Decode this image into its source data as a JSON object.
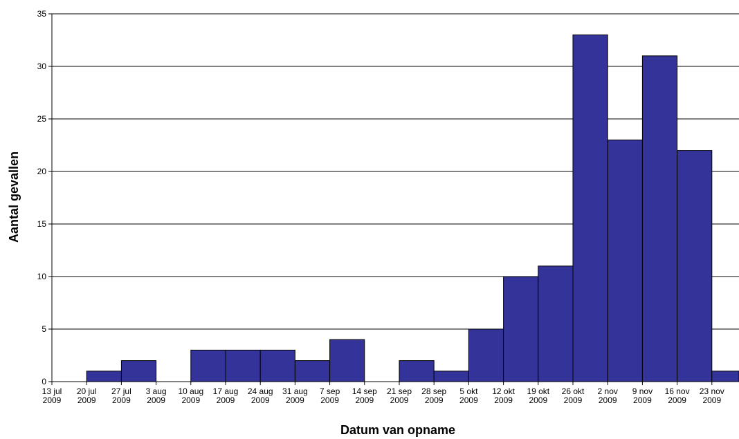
{
  "chart_data": {
    "type": "bar",
    "title": "",
    "xlabel": "Datum van opname",
    "ylabel": "Aantal gevallen",
    "ylim": [
      0,
      35
    ],
    "yticks": [
      0,
      5,
      10,
      15,
      20,
      25,
      30,
      35
    ],
    "grid": true,
    "legend": "none",
    "bar_color": "#333399",
    "bar_edge_color": "#000000",
    "xticks": [
      {
        "date": "13 jul",
        "year": "2009"
      },
      {
        "date": "20 jul",
        "year": "2009"
      },
      {
        "date": "27 jul",
        "year": "2009"
      },
      {
        "date": "3 aug",
        "year": "2009"
      },
      {
        "date": "10 aug",
        "year": "2009"
      },
      {
        "date": "17 aug",
        "year": "2009"
      },
      {
        "date": "24 aug",
        "year": "2009"
      },
      {
        "date": "31 aug",
        "year": "2009"
      },
      {
        "date": "7 sep",
        "year": "2009"
      },
      {
        "date": "14 sep",
        "year": "2009"
      },
      {
        "date": "21 sep",
        "year": "2009"
      },
      {
        "date": "28 sep",
        "year": "2009"
      },
      {
        "date": "5 okt",
        "year": "2009"
      },
      {
        "date": "12 okt",
        "year": "2009"
      },
      {
        "date": "19 okt",
        "year": "2009"
      },
      {
        "date": "26 okt",
        "year": "2009"
      },
      {
        "date": "2 nov",
        "year": "2009"
      },
      {
        "date": "9 nov",
        "year": "2009"
      },
      {
        "date": "16 nov",
        "year": "2009"
      },
      {
        "date": "23 nov",
        "year": "2009"
      }
    ],
    "bins": [
      {
        "start": "2009-07-13",
        "value": 0
      },
      {
        "start": "2009-07-20",
        "value": 1
      },
      {
        "start": "2009-07-27",
        "value": 2
      },
      {
        "start": "2009-08-03",
        "value": 0
      },
      {
        "start": "2009-08-10",
        "value": 3
      },
      {
        "start": "2009-08-17",
        "value": 3
      },
      {
        "start": "2009-08-24",
        "value": 3
      },
      {
        "start": "2009-08-31",
        "value": 2
      },
      {
        "start": "2009-09-07",
        "value": 4
      },
      {
        "start": "2009-09-14",
        "value": 0
      },
      {
        "start": "2009-09-21",
        "value": 2
      },
      {
        "start": "2009-09-28",
        "value": 1
      },
      {
        "start": "2009-10-05",
        "value": 5
      },
      {
        "start": "2009-10-12",
        "value": 10
      },
      {
        "start": "2009-10-19",
        "value": 11
      },
      {
        "start": "2009-10-26",
        "value": 33
      },
      {
        "start": "2009-11-02",
        "value": 23
      },
      {
        "start": "2009-11-09",
        "value": 31
      },
      {
        "start": "2009-11-16",
        "value": 22
      },
      {
        "start": "2009-11-23",
        "value": 1
      }
    ]
  }
}
